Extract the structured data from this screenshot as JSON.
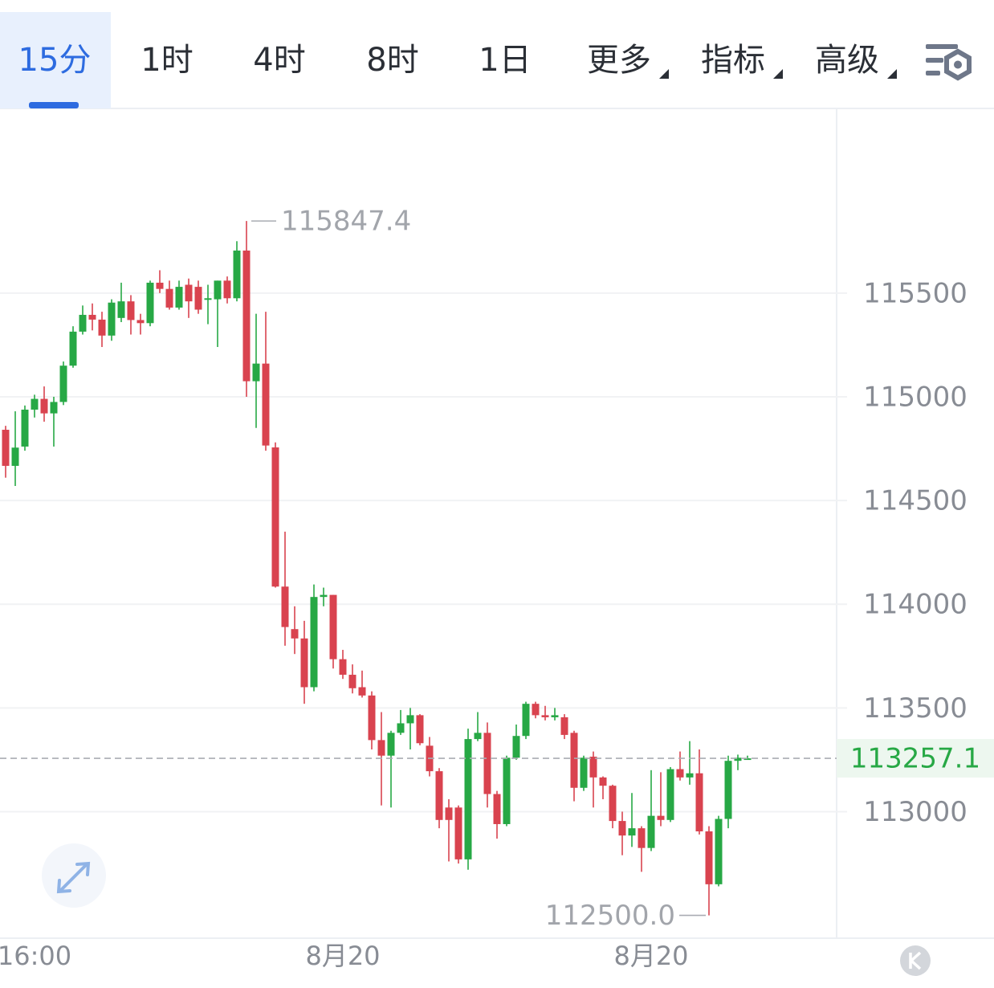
{
  "tabs": [
    "15分",
    "1时",
    "4时",
    "8时",
    "1日",
    "更多",
    "指标",
    "高级"
  ],
  "active_tab": 0,
  "dropdown_tabs": [
    5,
    6,
    7
  ],
  "chart_data": {
    "type": "candlestick",
    "categories": [
      null,
      null,
      null,
      "16:00",
      null,
      null,
      null,
      null,
      null,
      null,
      null,
      null,
      null,
      null,
      null,
      null,
      null,
      null,
      null,
      null,
      null,
      null,
      null,
      null,
      null,
      null,
      null,
      null,
      null,
      null,
      null,
      null,
      null,
      null,
      null,
      "8月20",
      null,
      null,
      null,
      null,
      null,
      null,
      null,
      null,
      null,
      null,
      null,
      null,
      null,
      null,
      null,
      null,
      null,
      null,
      null,
      null,
      null,
      null,
      null,
      null,
      null,
      null,
      null,
      null,
      null,
      null,
      null,
      "8月20",
      null,
      null,
      null,
      null,
      null,
      null,
      null,
      null,
      null,
      null
    ],
    "open": [
      114841,
      114667,
      114760,
      114938,
      114990,
      114920,
      114975,
      115150,
      115314,
      115395,
      115372,
      115295,
      115380,
      115460,
      115370,
      115355,
      115550,
      115520,
      115430,
      115540,
      115530,
      115468,
      115470,
      115560,
      115475,
      115705,
      115075,
      115160,
      114756,
      114085,
      113880,
      113835,
      113600,
      114035,
      114045,
      113735,
      113660,
      113600,
      113560,
      113345,
      113270,
      113380,
      113426,
      113465,
      113318,
      113195,
      113020,
      113020,
      112770,
      113350,
      113380,
      113085,
      112940,
      113260,
      113365,
      113520,
      113465,
      113455,
      113455,
      113380,
      113115,
      113265,
      113165,
      113125,
      112955,
      112885,
      112920,
      112825,
      112980,
      112960,
      113205,
      113165,
      113185,
      112905,
      112650,
      112965,
      113245,
      113255
    ],
    "high": [
      114860,
      114930,
      114958,
      115010,
      115050,
      115000,
      115170,
      115340,
      115440,
      115450,
      115410,
      115470,
      115550,
      115490,
      115400,
      115560,
      115610,
      115560,
      115560,
      115570,
      115560,
      115540,
      115560,
      115580,
      115750,
      115847.4,
      115400,
      115410,
      114780,
      114350,
      113990,
      113920,
      114095,
      114080,
      114045,
      113780,
      113710,
      113680,
      113580,
      113480,
      113390,
      113490,
      113500,
      113470,
      113360,
      113210,
      113060,
      113030,
      113400,
      113480,
      113430,
      113100,
      113270,
      113420,
      113530,
      113530,
      113510,
      113500,
      113470,
      113390,
      113270,
      113290,
      113170,
      113130,
      113000,
      113090,
      112930,
      113200,
      113190,
      113215,
      113290,
      113340,
      113300,
      112930,
      112980,
      113270,
      113275,
      113270
    ],
    "low": [
      114610,
      114570,
      114740,
      114900,
      114880,
      114760,
      114960,
      115140,
      115300,
      115320,
      115240,
      115270,
      115360,
      115300,
      115300,
      115340,
      115500,
      115420,
      115420,
      115380,
      115400,
      115350,
      115240,
      115450,
      115460,
      115000,
      114850,
      114740,
      114080,
      113800,
      113760,
      113520,
      113580,
      113990,
      113690,
      113640,
      113570,
      113550,
      113300,
      113030,
      113020,
      113370,
      113300,
      113320,
      113170,
      112920,
      112760,
      112750,
      112720,
      113340,
      113020,
      112870,
      112930,
      113250,
      113350,
      113450,
      113440,
      113440,
      113350,
      113050,
      113100,
      113020,
      113060,
      112920,
      112790,
      112830,
      112710,
      112810,
      112930,
      112950,
      113150,
      113130,
      112890,
      112500,
      112640,
      112920,
      113200,
      113250
    ],
    "close": [
      114667,
      114755,
      114938,
      114990,
      114920,
      114975,
      115150,
      115314,
      115395,
      115372,
      115295,
      115454,
      115460,
      115370,
      115355,
      115550,
      115520,
      115430,
      115530,
      115460,
      115420,
      115475,
      115560,
      115475,
      115705,
      115075,
      115160,
      114765,
      114085,
      113890,
      113835,
      113600,
      114035,
      114045,
      113735,
      113660,
      113595,
      113560,
      113345,
      113270,
      113380,
      113426,
      113465,
      113330,
      113195,
      112960,
      112960,
      112770,
      113350,
      113380,
      113085,
      112940,
      113260,
      113365,
      113520,
      113465,
      113455,
      113465,
      113370,
      113115,
      113260,
      113165,
      113125,
      112955,
      112885,
      112920,
      112825,
      112980,
      112960,
      113205,
      113165,
      113185,
      112905,
      112650,
      112965,
      113245,
      113260,
      113257.1
    ],
    "up_color": "#27a845",
    "down_color": "#d9434f",
    "ylim": [
      112390,
      116390
    ],
    "yticks": [
      113000,
      113500,
      114000,
      114500,
      115000,
      115500
    ],
    "grid": true,
    "high_marker": {
      "value": 115847.4,
      "label": "115847.4"
    },
    "low_marker": {
      "value": 112500,
      "label": "112500.0"
    },
    "last_price": 113257.1
  }
}
